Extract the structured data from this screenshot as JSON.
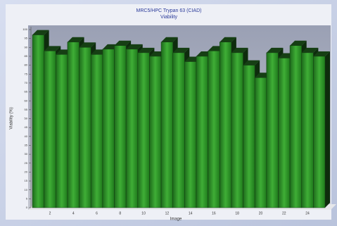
{
  "chart_data": {
    "type": "bar3d",
    "title": "MRC5/HPC Trypan 63 (CIAD)",
    "subtitle": "Viability",
    "x_label": "Image",
    "y_label": "Viability (%)",
    "categories": [
      null,
      "2",
      null,
      "4",
      null,
      "6",
      null,
      "8",
      null,
      "10",
      null,
      "12",
      null,
      "14",
      null,
      "16",
      null,
      "18",
      null,
      "20",
      null,
      "22",
      null,
      "24",
      null
    ],
    "values": [
      97,
      88,
      86,
      93,
      90,
      86,
      89,
      91,
      89,
      87,
      85,
      93,
      87,
      82,
      85,
      88,
      93,
      87,
      80,
      73,
      87,
      84,
      91,
      87,
      85
    ],
    "color": "#2f9a2a",
    "ylim": [
      0,
      100
    ],
    "yticks": [
      0,
      5,
      10,
      15,
      20,
      25,
      30,
      35,
      40,
      45,
      50,
      55,
      60,
      65,
      70,
      75,
      80,
      85,
      90,
      95,
      100
    ],
    "grid": false
  }
}
